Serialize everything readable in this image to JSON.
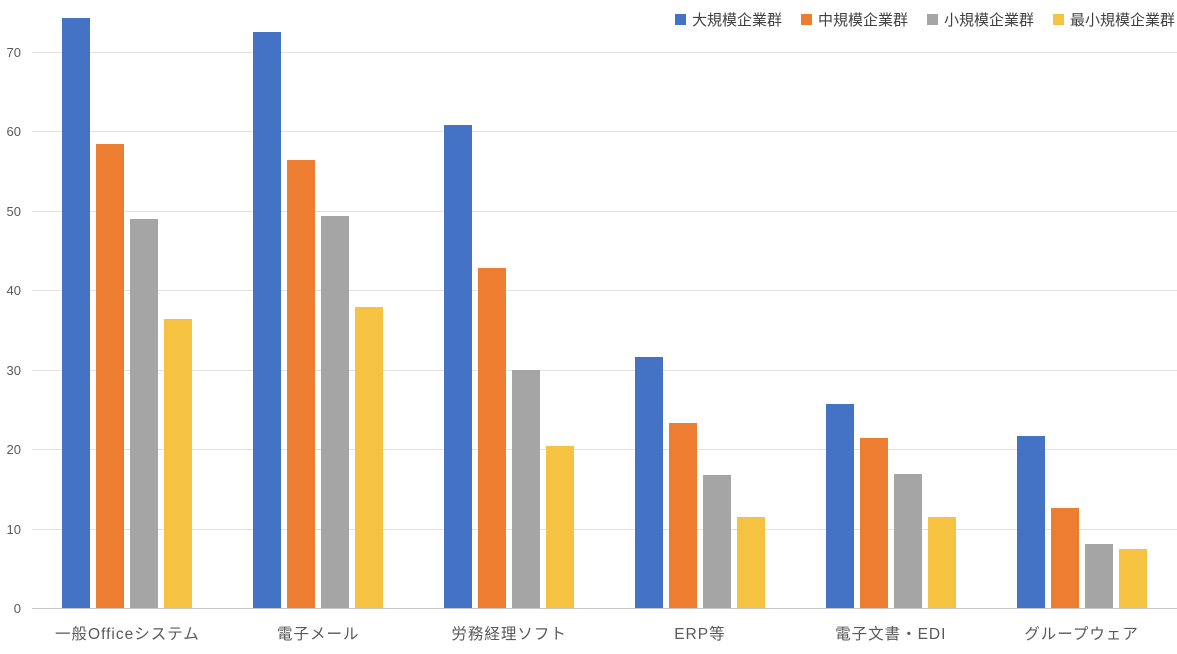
{
  "chart_data": {
    "type": "bar",
    "title": "",
    "xlabel": "",
    "ylabel": "",
    "categories": [
      "一般Officeシステム",
      "電子メール",
      "労務経理ソフト",
      "ERP等",
      "電子文書・EDI",
      "グループウェア"
    ],
    "series": [
      {
        "name": "大規模企業群",
        "color": "#4472C4",
        "values": [
          74.2,
          72.4,
          60.7,
          31.6,
          25.6,
          21.6
        ]
      },
      {
        "name": "中規模企業群",
        "color": "#ED7D31",
        "values": [
          58.4,
          56.3,
          42.8,
          23.3,
          21.4,
          12.6
        ]
      },
      {
        "name": "小規模企業群",
        "color": "#A5A5A5",
        "values": [
          48.9,
          49.3,
          30.0,
          16.7,
          16.9,
          8.0
        ]
      },
      {
        "name": "最小規模企業群",
        "color": "#F5C242",
        "values": [
          36.4,
          37.8,
          20.4,
          11.5,
          11.5,
          7.4
        ]
      }
    ],
    "y_axis": {
      "min": 0,
      "max": 75,
      "tick_step": 10,
      "ticks": [
        0,
        10,
        20,
        30,
        40,
        50,
        60,
        70
      ],
      "grid": true
    },
    "legend_position": "top-right"
  },
  "style": {
    "gridline_color": "#e2e2e2",
    "baseline_color": "#c8c8c8",
    "axis_label_color": "#595959",
    "legend_label_color": "#404040",
    "background": "#ffffff"
  }
}
